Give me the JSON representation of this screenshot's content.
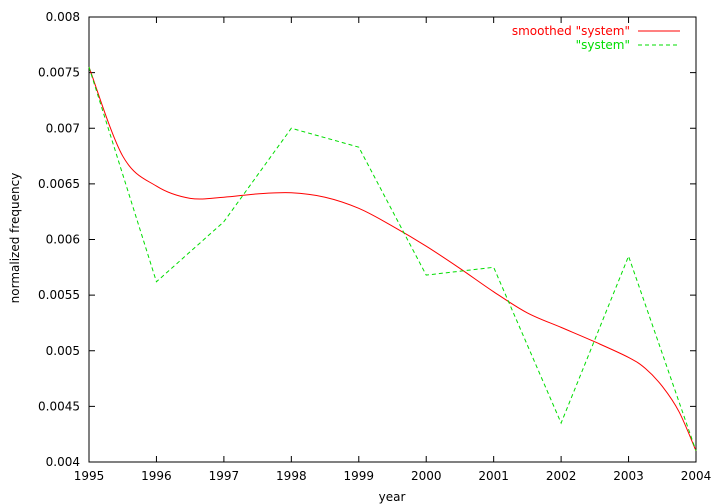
{
  "chart_data": {
    "type": "line",
    "title": "",
    "xlabel": "year",
    "ylabel": "normalized frequency",
    "xlim": [
      1995,
      2004
    ],
    "ylim": [
      0.004,
      0.008
    ],
    "x_ticks": [
      "1995",
      "1996",
      "1997",
      "1998",
      "1999",
      "2000",
      "2001",
      "2002",
      "2003",
      "2004"
    ],
    "y_ticks": [
      "0.004",
      "0.0045",
      "0.005",
      "0.0055",
      "0.006",
      "0.0065",
      "0.007",
      "0.0075",
      "0.008"
    ],
    "grid": false,
    "legend_position": "top-right",
    "series": [
      {
        "name": "smoothed \"system\"",
        "color": "#ff0000",
        "style": "solid",
        "x": [
          1995,
          1995.5,
          1996,
          1996.5,
          1997,
          1997.5,
          1998,
          1998.5,
          1999,
          1999.5,
          2000,
          2000.5,
          2001,
          2001.5,
          2002,
          2002.5,
          2003,
          2003.25,
          2003.5,
          2003.75,
          2004
        ],
        "y": [
          0.00755,
          0.00675,
          0.00648,
          0.00637,
          0.00638,
          0.00641,
          0.00642,
          0.00638,
          0.00628,
          0.00612,
          0.00594,
          0.00574,
          0.00553,
          0.00534,
          0.00521,
          0.00508,
          0.00494,
          0.00484,
          0.00468,
          0.00445,
          0.0041
        ]
      },
      {
        "name": "\"system\"",
        "color": "#00dd00",
        "style": "dashed",
        "x": [
          1995,
          1996,
          1997,
          1998,
          1999,
          2000,
          2001,
          2002,
          2003,
          2004
        ],
        "y": [
          0.00755,
          0.00562,
          0.00616,
          0.007,
          0.00683,
          0.00568,
          0.00575,
          0.00435,
          0.00585,
          0.0041
        ]
      }
    ]
  }
}
